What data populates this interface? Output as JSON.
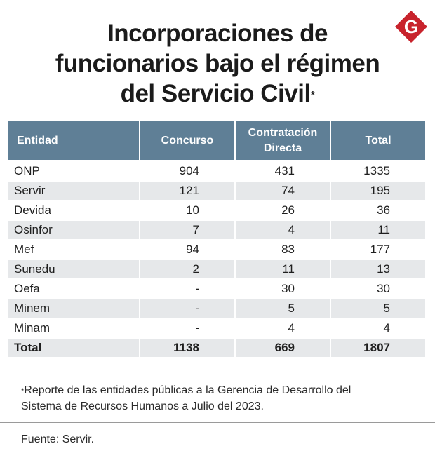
{
  "title": {
    "line1": "Incorporaciones de",
    "line2": "funcionarios bajo el régimen",
    "line3": "del Servicio Civil",
    "marker": "*"
  },
  "logo": {
    "letter": "G",
    "color": "#c8232c",
    "icon": "gestion-logo"
  },
  "colors": {
    "header": "#5f7f96",
    "stripe": "#e6e8ea"
  },
  "table": {
    "headers": [
      "Entidad",
      "Concurso",
      "Contratación",
      "Directa",
      "Total"
    ],
    "rows": [
      [
        "ONP",
        "904",
        "431",
        "1335"
      ],
      [
        "Servir",
        "121",
        "74",
        "195"
      ],
      [
        "Devida",
        "10",
        "26",
        "36"
      ],
      [
        "Osinfor",
        "7",
        "4",
        "11"
      ],
      [
        "Mef",
        "94",
        "83",
        "177"
      ],
      [
        "Sunedu",
        "2",
        "11",
        "13"
      ],
      [
        "Oefa",
        "-",
        "30",
        "30"
      ],
      [
        "Minem",
        "-",
        "5",
        "5"
      ],
      [
        "Minam",
        "-",
        "4",
        "4"
      ]
    ],
    "total": [
      "Total",
      "1138",
      "669",
      "1807"
    ]
  },
  "footnote": {
    "marker": "*",
    "line1": "Reporte de las entidades públicas a la Gerencia de Desarrollo del",
    "line2": "Sistema de Recursos Humanos a Julio del 2023."
  },
  "source": "Fuente: Servir.",
  "chart_data": {
    "type": "table",
    "title": "Incorporaciones de funcionarios bajo el régimen del Servicio Civil*",
    "columns": [
      "Entidad",
      "Concurso",
      "Contratación Directa",
      "Total"
    ],
    "rows": [
      {
        "Entidad": "ONP",
        "Concurso": 904,
        "Contratación Directa": 431,
        "Total": 1335
      },
      {
        "Entidad": "Servir",
        "Concurso": 121,
        "Contratación Directa": 74,
        "Total": 195
      },
      {
        "Entidad": "Devida",
        "Concurso": 10,
        "Contratación Directa": 26,
        "Total": 36
      },
      {
        "Entidad": "Osinfor",
        "Concurso": 7,
        "Contratación Directa": 4,
        "Total": 11
      },
      {
        "Entidad": "Mef",
        "Concurso": 94,
        "Contratación Directa": 83,
        "Total": 177
      },
      {
        "Entidad": "Sunedu",
        "Concurso": 2,
        "Contratación Directa": 11,
        "Total": 13
      },
      {
        "Entidad": "Oefa",
        "Concurso": null,
        "Contratación Directa": 30,
        "Total": 30
      },
      {
        "Entidad": "Minem",
        "Concurso": null,
        "Contratación Directa": 5,
        "Total": 5
      },
      {
        "Entidad": "Minam",
        "Concurso": null,
        "Contratación Directa": 4,
        "Total": 4
      }
    ],
    "totals": {
      "Entidad": "Total",
      "Concurso": 1138,
      "Contratación Directa": 669,
      "Total": 1807
    }
  }
}
